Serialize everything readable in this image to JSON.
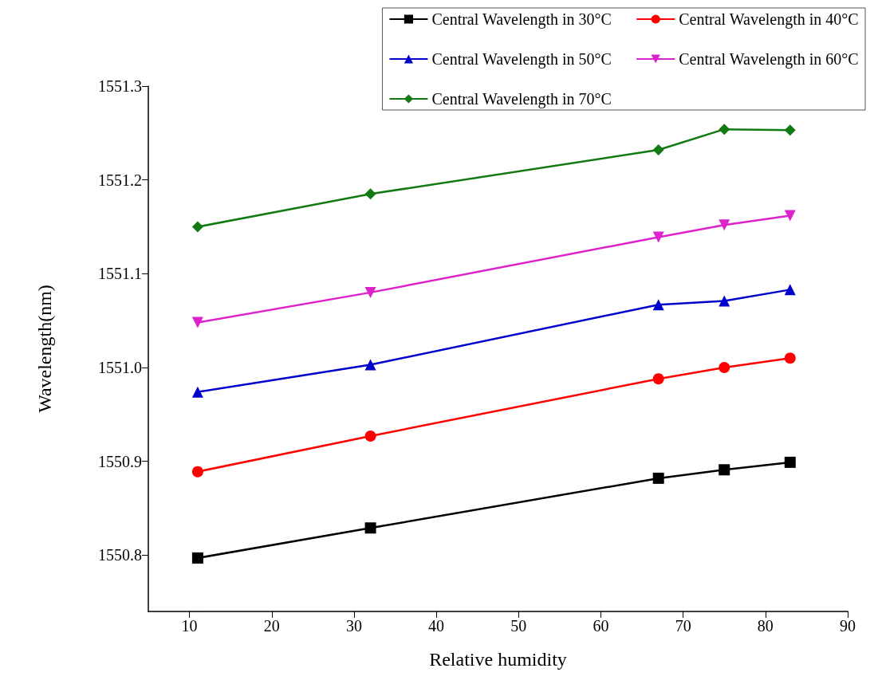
{
  "chart_data": {
    "type": "line",
    "xlabel": "Relative humidity",
    "ylabel": "Wavelength(nm)",
    "x": [
      11,
      32,
      67,
      75,
      83
    ],
    "series": [
      {
        "name": "Central Wavelength in 30°C",
        "color": "#000000",
        "marker": "square",
        "values": [
          1550.797,
          1550.829,
          1550.882,
          1550.891,
          1550.899
        ]
      },
      {
        "name": "Central Wavelength in 40°C",
        "color": "#ff0000",
        "marker": "circle",
        "values": [
          1550.889,
          1550.927,
          1550.988,
          1551.0,
          1551.01
        ]
      },
      {
        "name": "Central Wavelength in 50°C",
        "color": "#0000cc",
        "marker": "triangle",
        "values": [
          1550.974,
          1551.003,
          1551.067,
          1551.071,
          1551.083
        ]
      },
      {
        "name": "Central Wavelength in 60°C",
        "color": "#dd22cc",
        "marker": "triangle_down",
        "values": [
          1551.048,
          1551.08,
          1551.139,
          1551.152,
          1551.162
        ]
      },
      {
        "name": "Central Wavelength in 70°C",
        "color": "#137a13",
        "marker": "diamond",
        "values": [
          1551.15,
          1551.185,
          1551.232,
          1551.254,
          1551.253
        ]
      }
    ],
    "xlim": [
      5,
      90
    ],
    "xticks": [
      10,
      20,
      30,
      40,
      50,
      60,
      70,
      80,
      90
    ],
    "ylim": [
      1550.74,
      1551.3
    ],
    "yticks": [
      {
        "value": 1550.8,
        "label": "1550.8"
      },
      {
        "value": 1550.9,
        "label": "1550.9"
      },
      {
        "value": 1551,
        "label": "1551.0"
      },
      {
        "value": 1551.1,
        "label": "1551.1"
      },
      {
        "value": 1551.2,
        "label": "1551.2"
      },
      {
        "value": 1551.3,
        "label": "1551.3"
      }
    ],
    "legend": "top right",
    "grid": false,
    "line_style": "solid"
  }
}
